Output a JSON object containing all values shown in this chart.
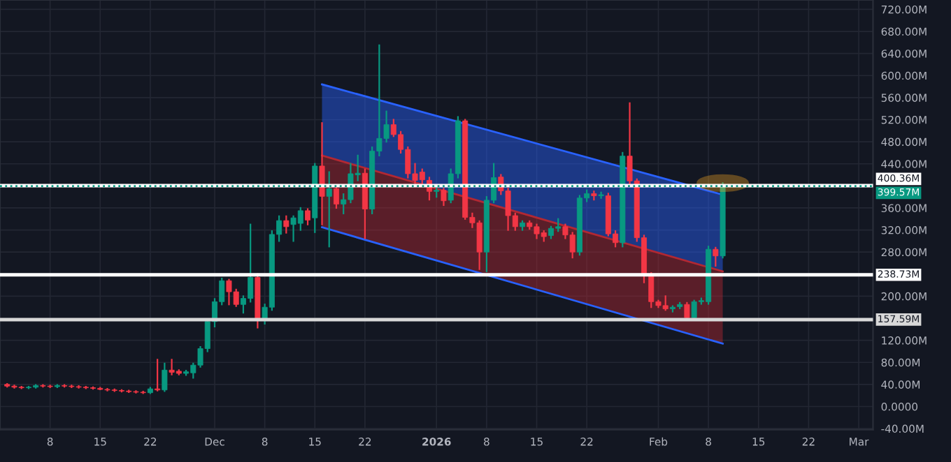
{
  "chart_data": {
    "type": "candlestick",
    "x": [
      "2025-11-02",
      "2025-11-03",
      "2025-11-04",
      "2025-11-05",
      "2025-11-06",
      "2025-11-07",
      "2025-11-08",
      "2025-11-09",
      "2025-11-10",
      "2025-11-11",
      "2025-11-12",
      "2025-11-13",
      "2025-11-14",
      "2025-11-15",
      "2025-11-16",
      "2025-11-17",
      "2025-11-18",
      "2025-11-19",
      "2025-11-20",
      "2025-11-21",
      "2025-11-22",
      "2025-11-23",
      "2025-11-24",
      "2025-11-25",
      "2025-11-26",
      "2025-11-27",
      "2025-11-28",
      "2025-11-29",
      "2025-11-30",
      "2025-12-01",
      "2025-12-02",
      "2025-12-03",
      "2025-12-04",
      "2025-12-05",
      "2025-12-06",
      "2025-12-07",
      "2025-12-08",
      "2025-12-09",
      "2025-12-10",
      "2025-12-11",
      "2025-12-12",
      "2025-12-13",
      "2025-12-14",
      "2025-12-15",
      "2025-12-16",
      "2025-12-17",
      "2025-12-18",
      "2025-12-19",
      "2025-12-20",
      "2025-12-21",
      "2025-12-22",
      "2025-12-23",
      "2025-12-24",
      "2025-12-25",
      "2025-12-26",
      "2025-12-27",
      "2025-12-28",
      "2025-12-29",
      "2025-12-30",
      "2025-12-31",
      "2026-01-01",
      "2026-01-02",
      "2026-01-03",
      "2026-01-04",
      "2026-01-05",
      "2026-01-06",
      "2026-01-07",
      "2026-01-08",
      "2026-01-09",
      "2026-01-10",
      "2026-01-11",
      "2026-01-12",
      "2026-01-13",
      "2026-01-14",
      "2026-01-15",
      "2026-01-16",
      "2026-01-17",
      "2026-01-18",
      "2026-01-19",
      "2026-01-20",
      "2026-01-21",
      "2026-01-22",
      "2026-01-23",
      "2026-01-24",
      "2026-01-25",
      "2026-01-26",
      "2026-01-27",
      "2026-01-28",
      "2026-01-29",
      "2026-01-30",
      "2026-01-31",
      "2026-02-01",
      "2026-02-02",
      "2026-02-03",
      "2026-02-04",
      "2026-02-05",
      "2026-02-06",
      "2026-02-07",
      "2026-02-08",
      "2026-02-09",
      "2026-02-10"
    ],
    "ohlc": [
      [
        40,
        41,
        36,
        37
      ],
      [
        37,
        38,
        34,
        35
      ],
      [
        35,
        36,
        33,
        34
      ],
      [
        34,
        36,
        33,
        35
      ],
      [
        35,
        39,
        34,
        38
      ],
      [
        38,
        39,
        36,
        37
      ],
      [
        37,
        38,
        35,
        36
      ],
      [
        36,
        39,
        35,
        38
      ],
      [
        38,
        39,
        36,
        37
      ],
      [
        37,
        38,
        35,
        36
      ],
      [
        36,
        37,
        34,
        35
      ],
      [
        35,
        36,
        33,
        34
      ],
      [
        34,
        35,
        32,
        33
      ],
      [
        33,
        34,
        31,
        31
      ],
      [
        31,
        32,
        29,
        30
      ],
      [
        30,
        31,
        28,
        29
      ],
      [
        29,
        30,
        27,
        28
      ],
      [
        28,
        29,
        26,
        27
      ],
      [
        27,
        28,
        25,
        26
      ],
      [
        26,
        27,
        24,
        25
      ],
      [
        25,
        34,
        24,
        32
      ],
      [
        32,
        85,
        29,
        30
      ],
      [
        30,
        78,
        28,
        66
      ],
      [
        66,
        85,
        58,
        62
      ],
      [
        64,
        66,
        58,
        60
      ],
      [
        60,
        65,
        57,
        63
      ],
      [
        61,
        78,
        52,
        75
      ],
      [
        75,
        108,
        72,
        105
      ],
      [
        105,
        158,
        100,
        154
      ],
      [
        154,
        195,
        145,
        190
      ],
      [
        190,
        232,
        185,
        228
      ],
      [
        228,
        230,
        185,
        208
      ],
      [
        208,
        212,
        182,
        185
      ],
      [
        185,
        200,
        170,
        196
      ],
      [
        196,
        330,
        190,
        234
      ],
      [
        234,
        240,
        143,
        157
      ],
      [
        157,
        185,
        150,
        180
      ],
      [
        180,
        318,
        175,
        312
      ],
      [
        312,
        345,
        300,
        337
      ],
      [
        337,
        345,
        315,
        326
      ],
      [
        330,
        345,
        300,
        342
      ],
      [
        332,
        360,
        320,
        355
      ],
      [
        355,
        358,
        330,
        338
      ],
      [
        342,
        440,
        316,
        436
      ],
      [
        436,
        514,
        330,
        381
      ],
      [
        381,
        425,
        290,
        395
      ],
      [
        395,
        400,
        360,
        367
      ],
      [
        367,
        385,
        350,
        375
      ],
      [
        375,
        440,
        370,
        422
      ],
      [
        420,
        455,
        410,
        423
      ],
      [
        423,
        430,
        305,
        358
      ],
      [
        358,
        470,
        350,
        463
      ],
      [
        463,
        655,
        455,
        486
      ],
      [
        486,
        535,
        480,
        511
      ],
      [
        511,
        520,
        490,
        493
      ],
      [
        493,
        498,
        460,
        466
      ],
      [
        466,
        470,
        415,
        422
      ],
      [
        422,
        440,
        405,
        410
      ],
      [
        425,
        430,
        405,
        411
      ],
      [
        410,
        415,
        375,
        390
      ],
      [
        390,
        398,
        380,
        392
      ],
      [
        392,
        395,
        365,
        373
      ],
      [
        374,
        430,
        370,
        422
      ],
      [
        422,
        525,
        415,
        518
      ],
      [
        518,
        520,
        340,
        343
      ],
      [
        343,
        350,
        325,
        333
      ],
      [
        333,
        336,
        249,
        280
      ],
      [
        280,
        380,
        245,
        374
      ],
      [
        374,
        440,
        370,
        415
      ],
      [
        416,
        420,
        385,
        391
      ],
      [
        391,
        395,
        320,
        346
      ],
      [
        346,
        350,
        320,
        326
      ],
      [
        326,
        336,
        320,
        333
      ],
      [
        333,
        336,
        322,
        326
      ],
      [
        326,
        330,
        305,
        313
      ],
      [
        315,
        318,
        300,
        308
      ],
      [
        310,
        326,
        305,
        323
      ],
      [
        323,
        340,
        318,
        326
      ],
      [
        326,
        330,
        305,
        311
      ],
      [
        311,
        315,
        270,
        280
      ],
      [
        280,
        382,
        275,
        378
      ],
      [
        378,
        392,
        372,
        386
      ],
      [
        386,
        390,
        375,
        382
      ],
      [
        382,
        388,
        378,
        384
      ],
      [
        382,
        386,
        310,
        313
      ],
      [
        313,
        318,
        290,
        297
      ],
      [
        297,
        460,
        290,
        454
      ],
      [
        454,
        550,
        400,
        409
      ],
      [
        409,
        412,
        300,
        306
      ],
      [
        306,
        310,
        225,
        239
      ],
      [
        239,
        242,
        180,
        190
      ],
      [
        190,
        192,
        180,
        183
      ],
      [
        183,
        200,
        175,
        177
      ],
      [
        177,
        182,
        172,
        180
      ],
      [
        181,
        188,
        178,
        185
      ],
      [
        185,
        188,
        158,
        161
      ],
      [
        161,
        192,
        158,
        190
      ],
      [
        190,
        196,
        186,
        192
      ],
      [
        190,
        290,
        186,
        285
      ],
      [
        285,
        288,
        255,
        273
      ],
      [
        273,
        405,
        270,
        401
      ]
    ],
    "colors": [
      "#f23645",
      "#f23645",
      "#f23645",
      "#089981",
      "#089981",
      "#f23645",
      "#f23645",
      "#089981",
      "#f23645",
      "#f23645",
      "#f23645",
      "#f23645",
      "#f23645",
      "#f23645",
      "#f23645",
      "#f23645",
      "#f23645",
      "#f23645",
      "#f23645",
      "#f23645",
      "#089981",
      "#f23645",
      "#089981",
      "#f23645",
      "#f23645",
      "#089981",
      "#089981",
      "#089981",
      "#089981",
      "#089981",
      "#089981",
      "#f23645",
      "#f23645",
      "#089981",
      "#089981",
      "#f23645",
      "#089981",
      "#089981",
      "#089981",
      "#f23645",
      "#089981",
      "#089981",
      "#f23645",
      "#089981",
      "#f23645",
      "#089981",
      "#f23645",
      "#089981",
      "#089981",
      "#089981",
      "#f23645",
      "#089981",
      "#089981",
      "#089981",
      "#f23645",
      "#f23645",
      "#f23645",
      "#f23645",
      "#f23645",
      "#f23645",
      "#089981",
      "#f23645",
      "#089981",
      "#089981",
      "#f23645",
      "#f23645",
      "#f23645",
      "#089981",
      "#089981",
      "#f23645",
      "#f23645",
      "#f23645",
      "#089981",
      "#f23645",
      "#f23645",
      "#f23645",
      "#089981",
      "#089981",
      "#f23645",
      "#f23645",
      "#089981",
      "#089981",
      "#f23645",
      "#089981",
      "#f23645",
      "#f23645",
      "#089981",
      "#f23645",
      "#f23645",
      "#f23645",
      "#f23645",
      "#f23645",
      "#f23645",
      "#089981",
      "#089981",
      "#f23645",
      "#089981",
      "#089981",
      "#089981",
      "#f23645",
      "#089981"
    ],
    "series": [
      {
        "type": "line",
        "color": "#2962ff",
        "x": [
          "2025-12-16",
          "2026-02-10"
        ],
        "values": [
          584,
          384
        ],
        "lower": [
          455,
          245
        ],
        "upper": [
          584,
          384
        ]
      },
      {
        "type": "line",
        "color": "#b22833",
        "x": [
          "2025-12-16",
          "2026-02-10"
        ],
        "values": [
          455,
          245
        ],
        "lower": [
          325,
          114
        ],
        "upper": [
          455,
          245
        ]
      },
      {
        "type": "line",
        "color": "#2962ff",
        "x": [
          "2025-12-16",
          "2026-02-10"
        ],
        "values": [
          325,
          114
        ]
      }
    ],
    "xlim": [
      "2025-11-01",
      "2026-03-03"
    ],
    "xticks": [
      {
        "value": "2025-11-08",
        "label": "8"
      },
      {
        "value": "2025-11-15",
        "label": "15"
      },
      {
        "value": "2025-11-22",
        "label": "22"
      },
      {
        "value": "2025-12-01",
        "label": "Dec"
      },
      {
        "value": "2025-12-08",
        "label": "8"
      },
      {
        "value": "2025-12-15",
        "label": "15"
      },
      {
        "value": "2025-12-22",
        "label": "22"
      },
      {
        "value": "2026-01-01",
        "label": "2026"
      },
      {
        "value": "2026-01-08",
        "label": "8"
      },
      {
        "value": "2026-01-15",
        "label": "15"
      },
      {
        "value": "2026-01-22",
        "label": "22"
      },
      {
        "value": "2026-02-01",
        "label": "Feb"
      },
      {
        "value": "2026-02-08",
        "label": "8"
      },
      {
        "value": "2026-02-15",
        "label": "15"
      },
      {
        "value": "2026-02-22",
        "label": "22"
      },
      {
        "value": "2026-03-01",
        "label": "Mar"
      }
    ],
    "ylim": [
      -42,
      737
    ],
    "yticks": [
      {
        "value": -40,
        "label": "-40.00M"
      },
      {
        "value": 0,
        "label": "0.0000"
      },
      {
        "value": 40,
        "label": "40.00M"
      },
      {
        "value": 80,
        "label": "80.00M"
      },
      {
        "value": 120,
        "label": "120.00M"
      },
      {
        "value": 200,
        "label": "200.00M"
      },
      {
        "value": 280,
        "label": "280.00M"
      },
      {
        "value": 320,
        "label": "320.00M"
      },
      {
        "value": 360,
        "label": "360.00M"
      },
      {
        "value": 440,
        "label": "440.00M"
      },
      {
        "value": 480,
        "label": "480.00M"
      },
      {
        "value": 520,
        "label": "520.00M"
      },
      {
        "value": 560,
        "label": "560.00M"
      },
      {
        "value": 600,
        "label": "600.00M"
      },
      {
        "value": 640,
        "label": "640.00M"
      },
      {
        "value": 680,
        "label": "680.00M"
      },
      {
        "value": 720,
        "label": "720.00M"
      }
    ],
    "ref_lines": [
      {
        "axis": "y",
        "value": 400.36,
        "label": "400.36M",
        "color": "#ffffff"
      },
      {
        "axis": "y",
        "value": 399.57,
        "label": "399.57M",
        "color": "#089981",
        "line_style": "dotted"
      },
      {
        "axis": "y",
        "value": 238.73,
        "label": "238.73M",
        "color": "#ffffff"
      },
      {
        "axis": "y",
        "value": 157.59,
        "label": "157.59M",
        "color": "#d8d8d8"
      }
    ],
    "grid": true
  }
}
